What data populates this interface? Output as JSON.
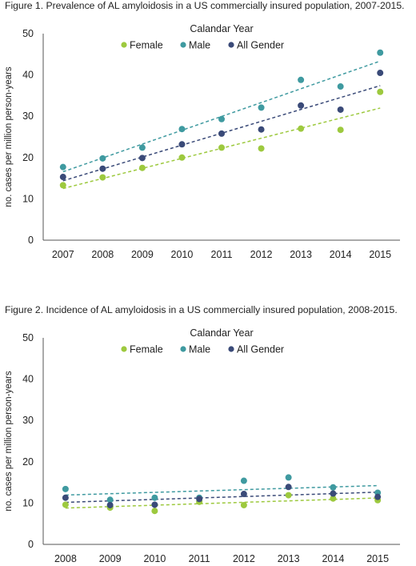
{
  "chart_data": [
    {
      "type": "scatter",
      "title": "Figure 1. Prevalence of AL amyloidosis in a US commercially insured population, 2007-2015.",
      "legend_title": "Calandar Year",
      "xlabel": "",
      "ylabel": "no. cases per million person-years",
      "categories": [
        "2007",
        "2008",
        "2009",
        "2010",
        "2011",
        "2012",
        "2013",
        "2014",
        "2015"
      ],
      "ylim": [
        0,
        50
      ],
      "yticks": [
        0,
        10,
        20,
        30,
        40,
        50
      ],
      "grid": false,
      "trendlines": "linear, dashed",
      "legend_position": "top-center",
      "series": [
        {
          "name": "Female",
          "color": "#9dc93e",
          "values": [
            13.3,
            15.2,
            17.5,
            20.0,
            22.4,
            22.2,
            27.0,
            26.7,
            35.9
          ]
        },
        {
          "name": "Male",
          "color": "#3f9aa0",
          "values": [
            17.7,
            19.8,
            22.4,
            26.9,
            29.3,
            32.1,
            38.8,
            37.2,
            45.4
          ]
        },
        {
          "name": "All Gender",
          "color": "#3a4a78",
          "values": [
            15.3,
            17.3,
            19.9,
            23.2,
            25.8,
            26.8,
            32.6,
            31.6,
            40.5
          ]
        }
      ]
    },
    {
      "type": "scatter",
      "title": "Figure 2. Incidence of AL amyloidosis in a US commercially insured population, 2008-2015.",
      "legend_title": "Calandar Year",
      "xlabel": "",
      "ylabel": "no. cases per million person-years",
      "categories": [
        "2008",
        "2009",
        "2010",
        "2011",
        "2012",
        "2013",
        "2014",
        "2015"
      ],
      "ylim": [
        0,
        50
      ],
      "yticks": [
        0,
        10,
        20,
        30,
        40,
        50
      ],
      "grid": false,
      "trendlines": "linear, dashed",
      "legend_position": "top-center",
      "series": [
        {
          "name": "Female",
          "color": "#9dc93e",
          "values": [
            9.6,
            8.9,
            8.1,
            10.3,
            9.5,
            11.9,
            11.1,
            10.7
          ]
        },
        {
          "name": "Male",
          "color": "#3f9aa0",
          "values": [
            13.4,
            10.8,
            11.3,
            11.3,
            15.4,
            16.2,
            13.8,
            12.5
          ]
        },
        {
          "name": "All Gender",
          "color": "#3a4a78",
          "values": [
            11.3,
            9.5,
            9.6,
            11.0,
            12.2,
            13.9,
            12.3,
            11.5
          ]
        }
      ]
    }
  ]
}
